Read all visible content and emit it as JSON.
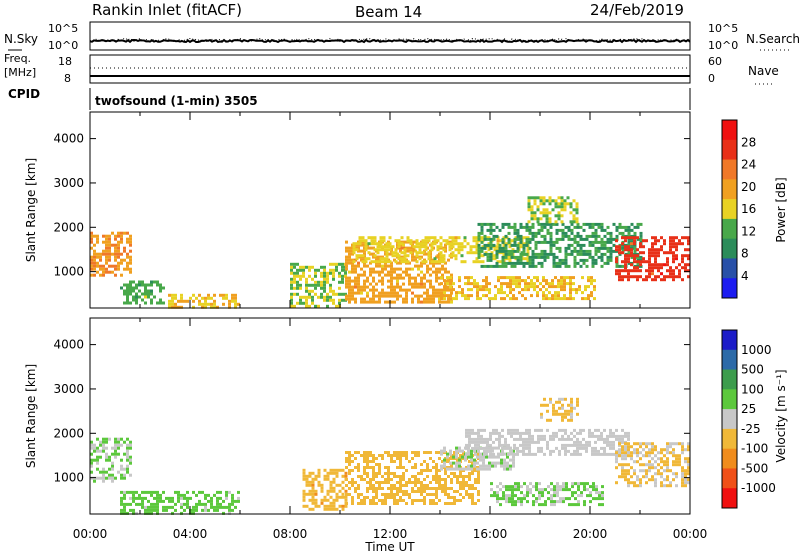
{
  "header": {
    "station": "Rankin Inlet (fitACF)",
    "beam": "Beam 14",
    "date": "24/Feb/2019"
  },
  "sky_panel": {
    "left_label": "N.Sky",
    "right_label": "N.Search",
    "left_ticks": [
      "10^5",
      "10^0"
    ],
    "right_ticks": [
      "10^5",
      "10^0"
    ]
  },
  "freq_panel": {
    "left_label_1": "Freq.",
    "left_label_2": "[MHz]",
    "left_label_3": "CPID",
    "right_label": "Nave",
    "left_ticks": [
      "18",
      "8"
    ],
    "right_ticks": [
      "60",
      "0"
    ]
  },
  "mode_label": "twofsound (1-min) 3505",
  "x_axis": {
    "label": "Time UT",
    "ticks": [
      "00:00",
      "04:00",
      "08:00",
      "12:00",
      "16:00",
      "20:00",
      "00:00"
    ]
  },
  "colors": {
    "power": [
      "#1c1cf0",
      "#2850a8",
      "#2b8c5a",
      "#48a84a",
      "#e8d224",
      "#f0a020",
      "#f07828",
      "#e83018",
      "#f01010"
    ],
    "velocity": [
      "#f01010",
      "#f05018",
      "#f08c1c",
      "#f0b838",
      "#c8c8c8",
      "#5cc83c",
      "#3c9c4c",
      "#2c6aa8",
      "#1c1cc8"
    ]
  },
  "chart_data": [
    {
      "type": "heatmap",
      "panel": "power",
      "ylabel": "Slant Range [km]",
      "ylim": [
        180,
        4600
      ],
      "yticks": [
        1000,
        2000,
        3000,
        4000
      ],
      "xlabel": "Time UT",
      "xlim_hours": [
        0,
        24
      ],
      "colorbar": {
        "label": "Power [dB]",
        "ticks": [
          "4",
          "8",
          "12",
          "16",
          "20",
          "24",
          "28"
        ]
      },
      "regions": [
        {
          "t": [
            0.0,
            1.6
          ],
          "r": [
            900,
            1900
          ],
          "value": 22
        },
        {
          "t": [
            1.2,
            3.0
          ],
          "r": [
            300,
            800
          ],
          "value": 12
        },
        {
          "t": [
            3.0,
            6.0
          ],
          "r": [
            180,
            500
          ],
          "value": 18
        },
        {
          "t": [
            8.0,
            10.2
          ],
          "r": [
            250,
            1200
          ],
          "value": 14
        },
        {
          "t": [
            10.2,
            14.5
          ],
          "r": [
            300,
            1700
          ],
          "value": 20
        },
        {
          "t": [
            10.5,
            17.5
          ],
          "r": [
            1200,
            1800
          ],
          "value": 16
        },
        {
          "t": [
            14.0,
            20.2
          ],
          "r": [
            400,
            900
          ],
          "value": 18
        },
        {
          "t": [
            15.5,
            22.0
          ],
          "r": [
            1100,
            2100
          ],
          "value": 10
        },
        {
          "t": [
            17.5,
            19.5
          ],
          "r": [
            2100,
            2700
          ],
          "value": 14
        },
        {
          "t": [
            21.0,
            24.0
          ],
          "r": [
            800,
            1800
          ],
          "value": 28
        }
      ]
    },
    {
      "type": "heatmap",
      "panel": "velocity",
      "ylabel": "Slant Range [km]",
      "ylim": [
        180,
        4600
      ],
      "yticks": [
        1000,
        2000,
        3000,
        4000
      ],
      "xlabel": "Time UT",
      "xlim_hours": [
        0,
        24
      ],
      "colorbar": {
        "label": "Velocity [m s⁻¹]",
        "ticks": [
          "1000",
          "500",
          "100",
          "25",
          "-25",
          "-100",
          "-500",
          "-1000"
        ]
      },
      "regions": [
        {
          "t": [
            0.0,
            1.6
          ],
          "r": [
            900,
            1900
          ],
          "value": 150
        },
        {
          "t": [
            1.2,
            6.0
          ],
          "r": [
            180,
            700
          ],
          "value": 200
        },
        {
          "t": [
            8.5,
            10.2
          ],
          "r": [
            300,
            1200
          ],
          "value": -300
        },
        {
          "t": [
            10.2,
            15.5
          ],
          "r": [
            400,
            1600
          ],
          "value": -250
        },
        {
          "t": [
            14.0,
            17.0
          ],
          "r": [
            1200,
            1700
          ],
          "value": 80
        },
        {
          "t": [
            15.0,
            21.5
          ],
          "r": [
            1500,
            2100
          ],
          "value": 0
        },
        {
          "t": [
            16.0,
            20.5
          ],
          "r": [
            400,
            900
          ],
          "value": 150
        },
        {
          "t": [
            18.0,
            19.5
          ],
          "r": [
            2300,
            2800
          ],
          "value": -150
        },
        {
          "t": [
            21.0,
            24.0
          ],
          "r": [
            800,
            1800
          ],
          "value": -150
        }
      ]
    }
  ]
}
